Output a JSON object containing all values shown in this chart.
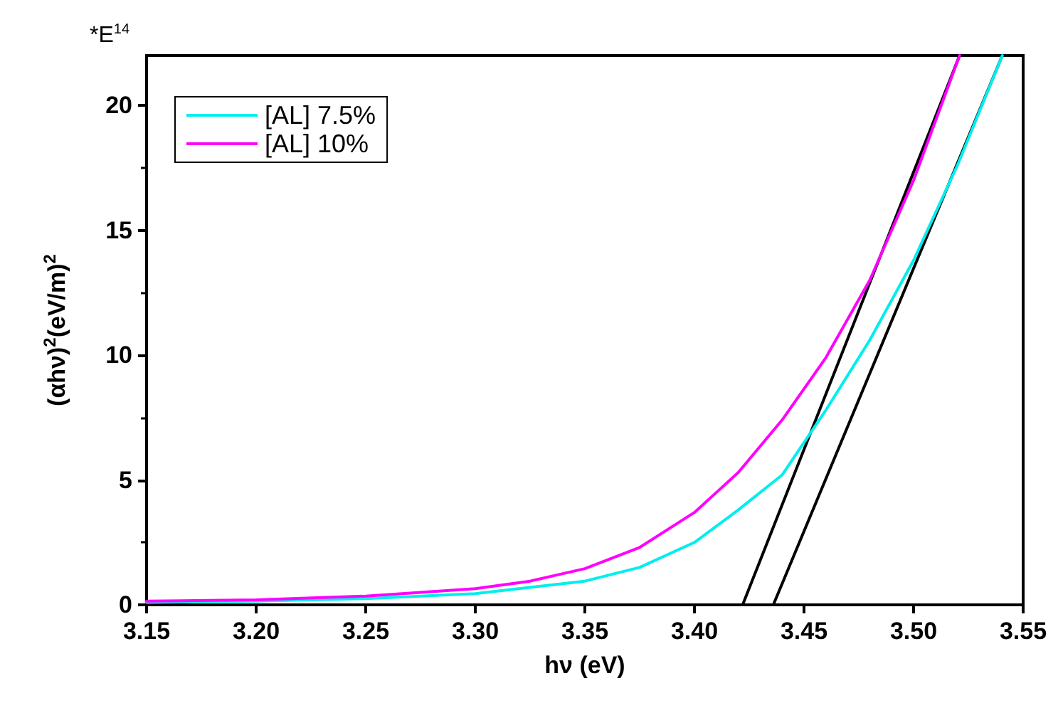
{
  "chart_data": {
    "type": "line",
    "xlabel": "hν (eV)",
    "ylabel": "(αhν)$^{2}$(eV/m)$^{2}$",
    "annotations": [
      "*E$^{14}$"
    ],
    "xlim": [
      3.15,
      3.55
    ],
    "ylim": [
      0,
      22
    ],
    "xticks": [
      {
        "value": 3.15,
        "label": "3.15"
      },
      {
        "value": 3.2,
        "label": "3.20"
      },
      {
        "value": 3.25,
        "label": "3.25"
      },
      {
        "value": 3.3,
        "label": "3.30"
      },
      {
        "value": 3.35,
        "label": "3.35"
      },
      {
        "value": 3.4,
        "label": "3.40"
      },
      {
        "value": 3.45,
        "label": "3.45"
      },
      {
        "value": 3.5,
        "label": "3.50"
      },
      {
        "value": 3.55,
        "label": "3.55"
      }
    ],
    "yticks": [
      0,
      5,
      10,
      15,
      20
    ],
    "grid": false,
    "legend": "top left",
    "line_style": "solid",
    "marker": "none",
    "series": [
      {
        "name": "[AL] 7.5%",
        "color": "#00eeee",
        "x": [
          3.15,
          3.2,
          3.25,
          3.3,
          3.35,
          3.375,
          3.4,
          3.42,
          3.44,
          3.45,
          3.46,
          3.48,
          3.5,
          3.52,
          3.5405
        ],
        "values": [
          0.1,
          0.15,
          0.25,
          0.45,
          0.95,
          1.5,
          2.5,
          3.8,
          5.2,
          6.5,
          7.8,
          10.6,
          13.8,
          17.6,
          22
        ]
      },
      {
        "name": "[AL] 10%",
        "color": "#ff00ff",
        "x": [
          3.15,
          3.2,
          3.25,
          3.3,
          3.325,
          3.35,
          3.375,
          3.4,
          3.42,
          3.44,
          3.46,
          3.48,
          3.5,
          3.521
        ],
        "values": [
          0.15,
          0.2,
          0.35,
          0.65,
          0.95,
          1.45,
          2.3,
          3.7,
          5.3,
          7.4,
          9.9,
          13.0,
          17.0,
          22
        ]
      },
      {
        "color": "#000000",
        "x": [
          3.422,
          3.521
        ],
        "values": [
          0,
          22
        ]
      },
      {
        "color": "#000000",
        "x": [
          3.436,
          3.5405
        ],
        "values": [
          0,
          22
        ]
      }
    ]
  }
}
